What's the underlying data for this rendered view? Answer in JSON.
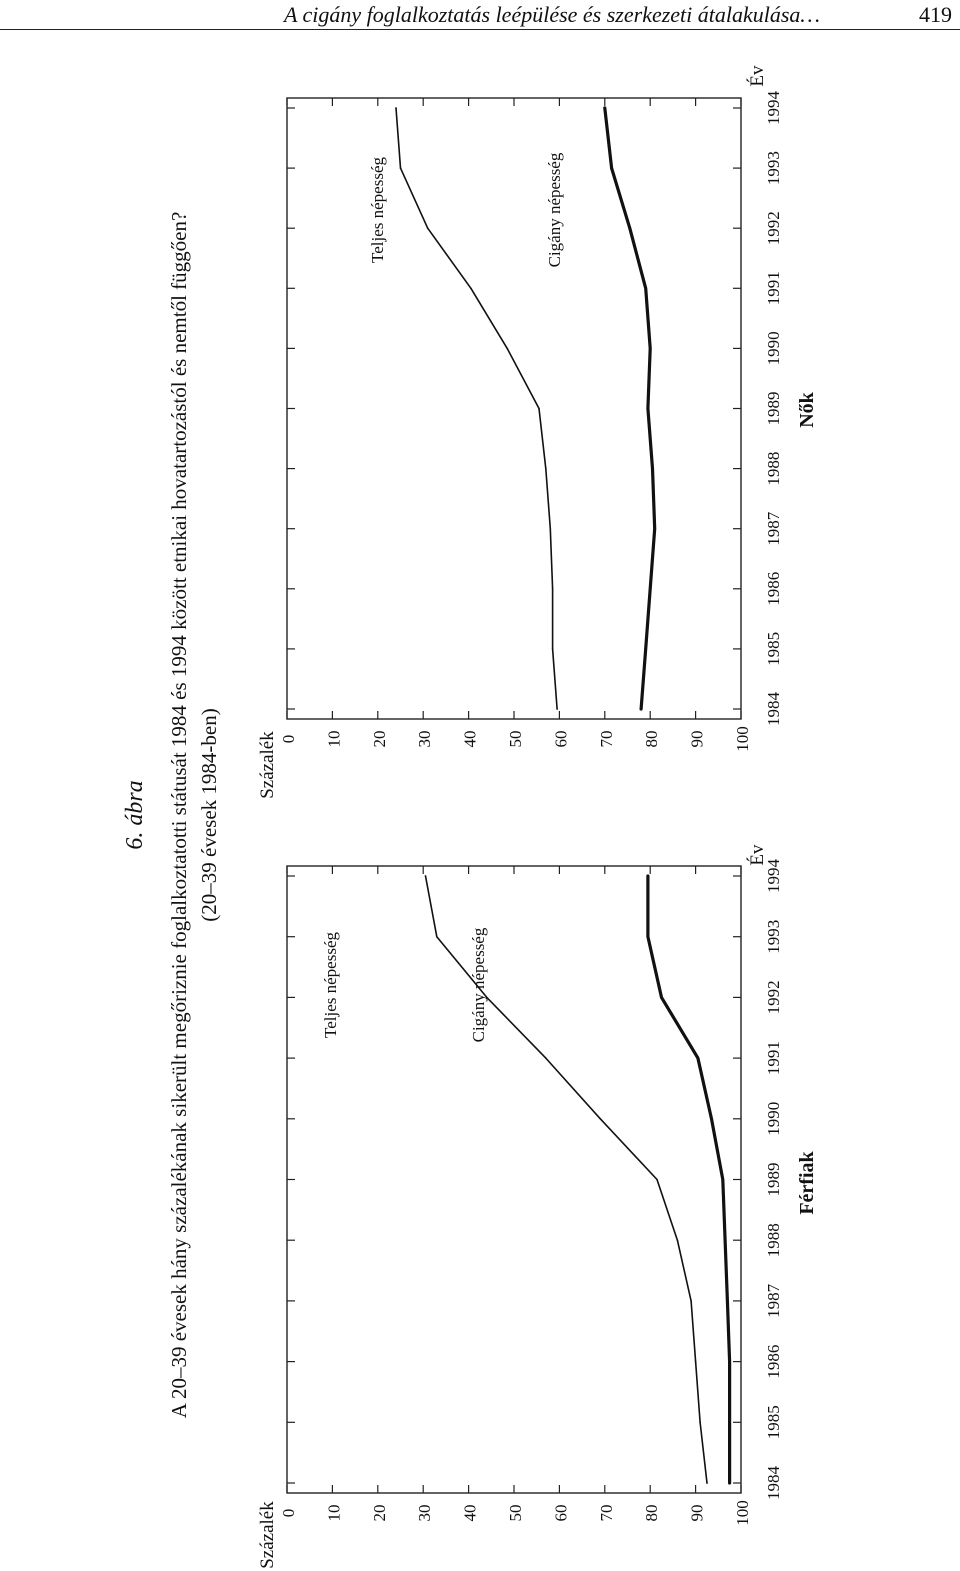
{
  "header": {
    "running_title": "A cigány foglalkoztatás leépülése és szerkezeti átalakulása…",
    "page_number": "419"
  },
  "figure": {
    "label": "6. ábra",
    "caption_line1": "A 20–39 évesek hány százalékának sikerült megőriznie foglalkoztatotti státusát 1984 és 1994 között etnikai hovatartozástól és nemtől függően?",
    "caption_line2": "(20–39 évesek 1984-ben)"
  },
  "chart_data": [
    {
      "type": "line",
      "title": "Férfiak",
      "xlabel": "Év",
      "ylabel": "Százalék",
      "x": [
        1984,
        1985,
        1986,
        1987,
        1988,
        1989,
        1990,
        1991,
        1992,
        1993,
        1994
      ],
      "xticks": [
        "1984",
        "1985",
        "1986",
        "1987",
        "1988",
        "1989",
        "1990",
        "1991",
        "1992",
        "1993",
        "1994"
      ],
      "yticks": [
        "0",
        "10",
        "20",
        "30",
        "40",
        "50",
        "60",
        "70",
        "80",
        "90",
        "100"
      ],
      "ylim": [
        0,
        100
      ],
      "series": [
        {
          "name": "Teljes népesség",
          "values": [
            97.5,
            97.5,
            97.5,
            97,
            96.5,
            96,
            93.5,
            90.5,
            82.5,
            79.5,
            79.5
          ]
        },
        {
          "name": "Cigány népesség",
          "values": [
            92.5,
            91,
            90,
            89,
            86,
            81.5,
            69,
            57,
            44,
            33,
            30.5
          ]
        }
      ]
    },
    {
      "type": "line",
      "title": "Nők",
      "xlabel": "Év",
      "ylabel": "Százalék",
      "x": [
        1984,
        1985,
        1986,
        1987,
        1988,
        1989,
        1990,
        1991,
        1992,
        1993,
        1994
      ],
      "xticks": [
        "1984",
        "1985",
        "1986",
        "1987",
        "1988",
        "1989",
        "1990",
        "1991",
        "1992",
        "1993",
        "1994"
      ],
      "yticks": [
        "0",
        "10",
        "20",
        "30",
        "40",
        "50",
        "60",
        "70",
        "80",
        "90",
        "100"
      ],
      "ylim": [
        0,
        100
      ],
      "series": [
        {
          "name": "Teljes népesség",
          "values": [
            78,
            79,
            80,
            81,
            80.5,
            79.5,
            80,
            79,
            75.5,
            71.5,
            70
          ]
        },
        {
          "name": "Cigány népesség",
          "values": [
            59.5,
            58.5,
            58.5,
            58,
            57,
            55.5,
            48.5,
            40.5,
            31,
            25,
            24
          ]
        }
      ]
    }
  ]
}
